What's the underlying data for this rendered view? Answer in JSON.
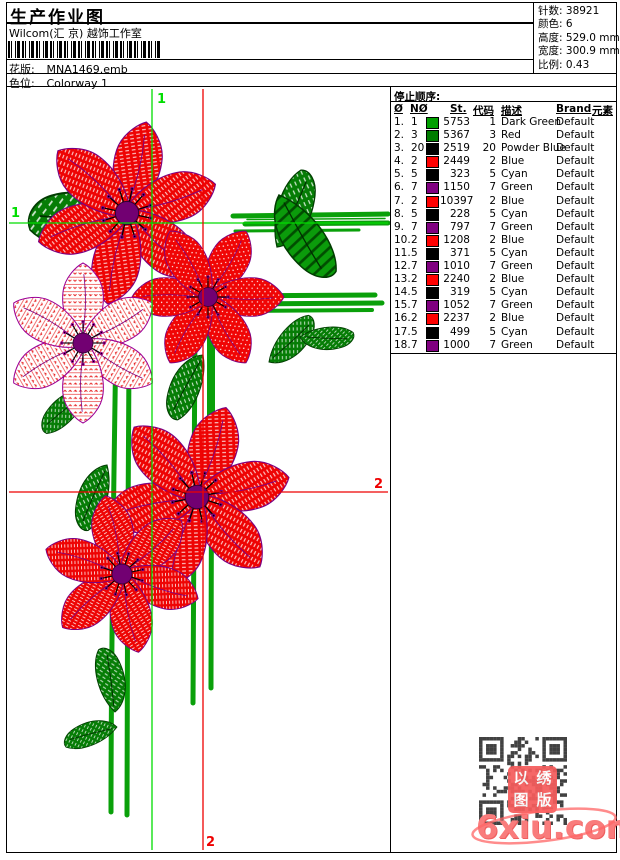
{
  "header": {
    "title": "生产作业图",
    "studio": "Wilcom(汇 京) 越饰工作室",
    "design_label": "花版:",
    "design_value": "MNA1469.emb",
    "colorway_label": "色位:",
    "colorway_value": "Colorway 1"
  },
  "info": {
    "rows": [
      {
        "label": "针数:",
        "value": "38921"
      },
      {
        "label": "颜色:",
        "value": "6"
      },
      {
        "label": "高度:",
        "value": "529.0 mm"
      },
      {
        "label": "宽度:",
        "value": "300.9 mm"
      },
      {
        "label": "比例:",
        "value": "0.43"
      }
    ]
  },
  "stop_table": {
    "title": "停止顺序:",
    "columns": [
      "Ø",
      "NØ",
      "St.",
      "代码",
      "描述",
      "Brand",
      "元素"
    ],
    "rows": [
      {
        "seq": "1.",
        "needle": "1",
        "chip": "#00a000",
        "st": "5753",
        "code": "1",
        "desc": "Dark Green",
        "brand": "Default"
      },
      {
        "seq": "2.",
        "needle": "3",
        "chip": "#007c00",
        "st": "5367",
        "code": "3",
        "desc": "Red",
        "brand": "Default"
      },
      {
        "seq": "3.",
        "needle": "20",
        "chip": "#000000",
        "st": "2519",
        "code": "20",
        "desc": "Powder Blue",
        "brand": "Default"
      },
      {
        "seq": "4.",
        "needle": "2",
        "chip": "#ff0000",
        "st": "2449",
        "code": "2",
        "desc": "Blue",
        "brand": "Default"
      },
      {
        "seq": "5.",
        "needle": "5",
        "chip": "#000000",
        "st": "323",
        "code": "5",
        "desc": "Cyan",
        "brand": "Default"
      },
      {
        "seq": "6.",
        "needle": "7",
        "chip": "#800080",
        "st": "1150",
        "code": "7",
        "desc": "Green",
        "brand": "Default"
      },
      {
        "seq": "7.",
        "needle": "2",
        "chip": "#ff0000",
        "st": "10397",
        "code": "2",
        "desc": "Blue",
        "brand": "Default"
      },
      {
        "seq": "8.",
        "needle": "5",
        "chip": "#000000",
        "st": "228",
        "code": "5",
        "desc": "Cyan",
        "brand": "Default"
      },
      {
        "seq": "9.",
        "needle": "7",
        "chip": "#800080",
        "st": "797",
        "code": "7",
        "desc": "Green",
        "brand": "Default"
      },
      {
        "seq": "10.",
        "needle": "2",
        "chip": "#ff0000",
        "st": "1208",
        "code": "2",
        "desc": "Blue",
        "brand": "Default"
      },
      {
        "seq": "11.",
        "needle": "5",
        "chip": "#000000",
        "st": "371",
        "code": "5",
        "desc": "Cyan",
        "brand": "Default"
      },
      {
        "seq": "12.",
        "needle": "7",
        "chip": "#800080",
        "st": "1010",
        "code": "7",
        "desc": "Green",
        "brand": "Default"
      },
      {
        "seq": "13.",
        "needle": "2",
        "chip": "#ff0000",
        "st": "2240",
        "code": "2",
        "desc": "Blue",
        "brand": "Default"
      },
      {
        "seq": "14.",
        "needle": "5",
        "chip": "#000000",
        "st": "319",
        "code": "5",
        "desc": "Cyan",
        "brand": "Default"
      },
      {
        "seq": "15.",
        "needle": "7",
        "chip": "#800080",
        "st": "1052",
        "code": "7",
        "desc": "Green",
        "brand": "Default"
      },
      {
        "seq": "16.",
        "needle": "2",
        "chip": "#ff0000",
        "st": "2237",
        "code": "2",
        "desc": "Blue",
        "brand": "Default"
      },
      {
        "seq": "17.",
        "needle": "5",
        "chip": "#000000",
        "st": "499",
        "code": "5",
        "desc": "Cyan",
        "brand": "Default"
      },
      {
        "seq": "18.",
        "needle": "7",
        "chip": "#800080",
        "st": "1000",
        "code": "7",
        "desc": "Green",
        "brand": "Default"
      }
    ]
  },
  "canvas": {
    "marker1_label": "1",
    "marker2_label": "2",
    "marker1_color": "#00dd00",
    "marker2_color": "#ee0000"
  },
  "stamp": {
    "chars": [
      "以",
      "绣",
      "图",
      "版"
    ]
  },
  "watermark": {
    "text": "6xiu.com",
    "color": "#f97c7c"
  }
}
